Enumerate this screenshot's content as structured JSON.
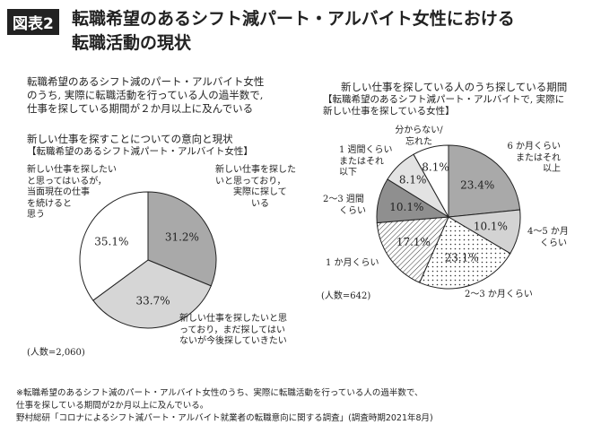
{
  "header": {
    "badge": "図表2",
    "title_line1": "転職希望のあるシフト減パート・アルバイト女性における",
    "title_line2": "転職活動の現状"
  },
  "summary": [
    "転職希望のあるシフト減のパート・アルバイト女性",
    "のうち, 実際に転職活動を行っている人の過半数で,",
    "仕事を探している期間が２か月以上に及んでいる"
  ],
  "chart_data": [
    {
      "type": "pie",
      "title": "新しい仕事を探すことについての意向と現状",
      "subtitle": "【転職希望のあるシフト減パート・アルバイト女性】",
      "n_label": "(人数=2,060)",
      "slices": [
        {
          "label": "新しい仕事を探したいと思っており，実際に探している",
          "value": 31.2,
          "display": "31.2%",
          "color": "#a9a9a9"
        },
        {
          "label": "新しい仕事を探したいと思っており，まだ探してはいないが今後探していきたい",
          "value": 33.7,
          "display": "33.7%",
          "color": "#d6d6d6"
        },
        {
          "label": "新しい仕事を探したいと思ってはいるが，当面現在の仕事を続けると思う",
          "value": 35.1,
          "display": "35.1%",
          "color": "#ffffff"
        }
      ]
    },
    {
      "type": "pie",
      "title": "新しい仕事を探している人のうち探している期間",
      "subtitle1": "【転職希望のあるシフト減パート・アルバイトで, 実際に",
      "subtitle2": "新しい仕事を探している女性】",
      "n_label": "(人数=642)",
      "slices": [
        {
          "label": "6か月くらいまたはそれ以上",
          "value": 23.4,
          "display": "23.4%",
          "color": "#a9a9a9",
          "pattern": "solid"
        },
        {
          "label": "4〜5か月くらい",
          "value": 10.1,
          "display": "10.1%",
          "color": "#d3d3d3",
          "pattern": "solid"
        },
        {
          "label": "2〜3か月くらい",
          "value": 23.1,
          "display": "23.1%",
          "color": "#ffffff",
          "pattern": "dots"
        },
        {
          "label": "1か月くらい",
          "value": 17.1,
          "display": "17.1%",
          "color": "#ffffff",
          "pattern": "hatch"
        },
        {
          "label": "2〜3週間くらい",
          "value": 10.1,
          "display": "10.1%",
          "color": "#8f8f8f",
          "pattern": "solid"
        },
        {
          "label": "1週間くらいまたはそれ以下",
          "value": 8.1,
          "display": "8.1%",
          "color": "#e3e3e3",
          "pattern": "solid"
        },
        {
          "label": "分からない/忘れた",
          "value": 8.1,
          "display": "8.1%",
          "color": "#ffffff",
          "pattern": "solid"
        }
      ]
    }
  ],
  "labels": {
    "l1": [
      "新しい仕事を探した",
      "いと思っており，",
      "実際に探して",
      "いる"
    ],
    "l2": [
      "新しい仕事を探したいと思",
      "っており，まだ探してはい",
      "ないが今後探していきたい"
    ],
    "l3": [
      "新しい仕事を探したい",
      "と思ってはいるが，",
      "当面現在の仕事",
      "を続けると",
      "思う"
    ],
    "r1": [
      "6 か月くらい",
      "またはそれ",
      "以上"
    ],
    "r2": [
      "4〜5 か月",
      "くらい"
    ],
    "r3": "2〜3 か月くらい",
    "r4": "1 か月くらい",
    "r5": [
      "2〜3 週間",
      "くらい"
    ],
    "r6": [
      "1 週間くらい",
      "またはそれ",
      "以下"
    ],
    "r7": [
      "分からない/",
      "忘れた"
    ]
  },
  "footnote": [
    "※転職希望のあるシフト減のパート・アルバイト女性のうち、実際に転職活動を行っている人の過半数で、",
    "仕事を探している期間が2か月以上に及んでいる。",
    "野村総研「コロナによるシフト減パート・アルバイト就業者の転職意向に関する調査」(調査時期2021年8月)"
  ]
}
